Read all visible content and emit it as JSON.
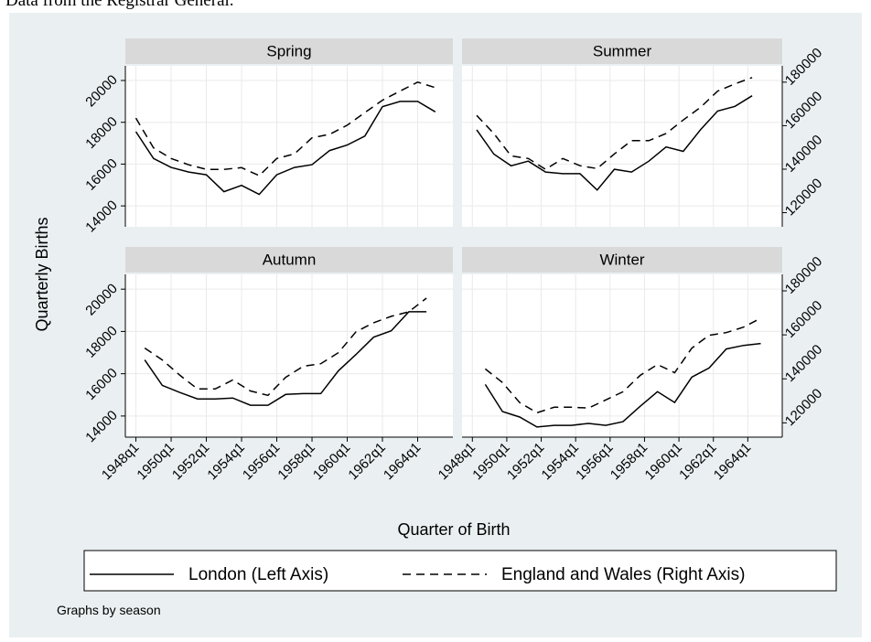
{
  "figure": {
    "caption": "Data from the Registrar General.",
    "y_label": "Quarterly Births",
    "x_label": "Quarter of Birth",
    "note": "Graphs by season"
  },
  "chart_data": [
    {
      "type": "line",
      "title": "Spring",
      "x": [
        1948,
        1949,
        1950,
        1951,
        1952,
        1953,
        1954,
        1955,
        1956,
        1957,
        1958,
        1959,
        1960,
        1961,
        1962,
        1963,
        1964,
        1965
      ],
      "series": [
        {
          "name": "London (Left Axis)",
          "color": "#000000",
          "line_style": "solid",
          "axis": "y",
          "values": [
            17550,
            16270,
            15840,
            15620,
            15490,
            14680,
            14980,
            14550,
            15490,
            15840,
            15970,
            16650,
            16910,
            17340,
            18750,
            19000,
            19000,
            18500
          ]
        },
        {
          "name": "England and Wales (Right Axis)",
          "color": "#000000",
          "line_style": "dashed",
          "axis": "y2",
          "values": [
            163500,
            149800,
            144900,
            142000,
            139900,
            139900,
            140700,
            137000,
            144900,
            147000,
            154400,
            156000,
            160200,
            166000,
            171700,
            175900,
            180000,
            177500
          ]
        }
      ],
      "xlim": [
        1947.4,
        1966
      ],
      "xticks": [
        {
          "value": 1948,
          "label": "1948q1"
        },
        {
          "value": 1950,
          "label": "1950q1"
        },
        {
          "value": 1952,
          "label": "1952q1"
        },
        {
          "value": 1954,
          "label": "1954q1"
        },
        {
          "value": 1956,
          "label": "1956q1"
        },
        {
          "value": 1958,
          "label": "1958q1"
        },
        {
          "value": 1960,
          "label": "1960q1"
        },
        {
          "value": 1962,
          "label": "1962q1"
        },
        {
          "value": 1964,
          "label": "1964q1"
        }
      ],
      "ylim": [
        13000,
        20700
      ],
      "yticks": [
        14000,
        16000,
        18000,
        20000
      ],
      "y2lim": [
        113500,
        187500
      ],
      "grid": true
    },
    {
      "type": "line",
      "title": "Summer",
      "x": [
        1948.25,
        1949.25,
        1950.25,
        1951.25,
        1952.25,
        1953.25,
        1954.25,
        1955.25,
        1956.25,
        1957.25,
        1958.25,
        1959.25,
        1960.25,
        1961.25,
        1962.25,
        1963.25,
        1964.25
      ],
      "series": [
        {
          "color": "#000000",
          "line_style": "solid",
          "axis": "y",
          "values": [
            17640,
            16480,
            15920,
            16140,
            15620,
            15540,
            15540,
            14760,
            15750,
            15620,
            16140,
            16820,
            16610,
            17640,
            18540,
            18760,
            19270
          ]
        },
        {
          "color": "#000000",
          "line_style": "dashed",
          "axis": "y2",
          "values": [
            164700,
            156400,
            146100,
            144900,
            139900,
            144900,
            141600,
            140300,
            147000,
            153100,
            153100,
            156400,
            162600,
            168400,
            175900,
            179200,
            182100
          ]
        }
      ],
      "xlim": [
        1947.4,
        1966
      ],
      "xticks": [
        1948,
        1950,
        1952,
        1954,
        1956,
        1958,
        1960,
        1962,
        1964
      ],
      "ylim": [
        13000,
        20700
      ],
      "yticks": [
        14000,
        16000,
        18000,
        20000
      ],
      "y2lim": [
        113500,
        187500
      ],
      "y2ticks": [
        120000,
        140000,
        160000,
        180000
      ],
      "grid": true
    },
    {
      "type": "line",
      "title": "Autumn",
      "x": [
        1948.5,
        1949.5,
        1950.5,
        1951.5,
        1952.5,
        1953.5,
        1954.5,
        1955.5,
        1956.5,
        1957.5,
        1958.5,
        1959.5,
        1960.5,
        1961.5,
        1962.5,
        1963.5,
        1964.5
      ],
      "series": [
        {
          "color": "#000000",
          "line_style": "solid",
          "axis": "y",
          "values": [
            16650,
            15450,
            15110,
            14810,
            14810,
            14850,
            14510,
            14510,
            15020,
            15060,
            15060,
            16140,
            16910,
            17730,
            18030,
            18930,
            18930
          ]
        },
        {
          "color": "#000000",
          "line_style": "dashed",
          "axis": "y2",
          "values": [
            154000,
            148600,
            141600,
            135400,
            135400,
            139500,
            134500,
            132500,
            140700,
            145700,
            146900,
            151900,
            161400,
            165500,
            168400,
            170500,
            176700
          ]
        }
      ],
      "xlim": [
        1947.4,
        1966
      ],
      "xticks": [
        {
          "value": 1948,
          "label": "1948q1"
        },
        {
          "value": 1950,
          "label": "1950q1"
        },
        {
          "value": 1952,
          "label": "1952q1"
        },
        {
          "value": 1954,
          "label": "1954q1"
        },
        {
          "value": 1956,
          "label": "1956q1"
        },
        {
          "value": 1958,
          "label": "1958q1"
        },
        {
          "value": 1960,
          "label": "1960q1"
        },
        {
          "value": 1962,
          "label": "1962q1"
        },
        {
          "value": 1964,
          "label": "1964q1"
        }
      ],
      "ylim": [
        13000,
        20700
      ],
      "yticks": [
        14000,
        16000,
        18000,
        20000
      ],
      "y2lim": [
        113500,
        187500
      ],
      "grid": true
    },
    {
      "type": "line",
      "title": "Winter",
      "x": [
        1948.75,
        1949.75,
        1950.75,
        1951.75,
        1952.75,
        1953.75,
        1954.75,
        1955.75,
        1956.75,
        1957.75,
        1958.75,
        1959.75,
        1960.75,
        1961.75,
        1962.75,
        1963.75,
        1964.75
      ],
      "series": [
        {
          "color": "#000000",
          "line_style": "solid",
          "axis": "y",
          "values": [
            15490,
            14210,
            13950,
            13480,
            13560,
            13560,
            13650,
            13560,
            13730,
            14460,
            15150,
            14640,
            15840,
            16270,
            17170,
            17340,
            17430
          ]
        },
        {
          "color": "#000000",
          "line_style": "dashed",
          "axis": "y2",
          "values": [
            144500,
            138300,
            129200,
            124600,
            127100,
            127100,
            126700,
            130400,
            134100,
            141600,
            146500,
            142800,
            154000,
            159800,
            161000,
            163500,
            167600
          ]
        }
      ],
      "xlim": [
        1947.4,
        1966
      ],
      "xticks": [
        {
          "value": 1948,
          "label": "1948q1"
        },
        {
          "value": 1950,
          "label": "1950q1"
        },
        {
          "value": 1952,
          "label": "1952q1"
        },
        {
          "value": 1954,
          "label": "1954q1"
        },
        {
          "value": 1956,
          "label": "1956q1"
        },
        {
          "value": 1958,
          "label": "1958q1"
        },
        {
          "value": 1960,
          "label": "1960q1"
        },
        {
          "value": 1962,
          "label": "1962q1"
        },
        {
          "value": 1964,
          "label": "1964q1"
        }
      ],
      "ylim": [
        13000,
        20700
      ],
      "yticks": [
        14000,
        16000,
        18000,
        20000
      ],
      "y2lim": [
        113500,
        187500
      ],
      "y2ticks": [
        120000,
        140000,
        160000,
        180000
      ],
      "grid": true
    }
  ]
}
